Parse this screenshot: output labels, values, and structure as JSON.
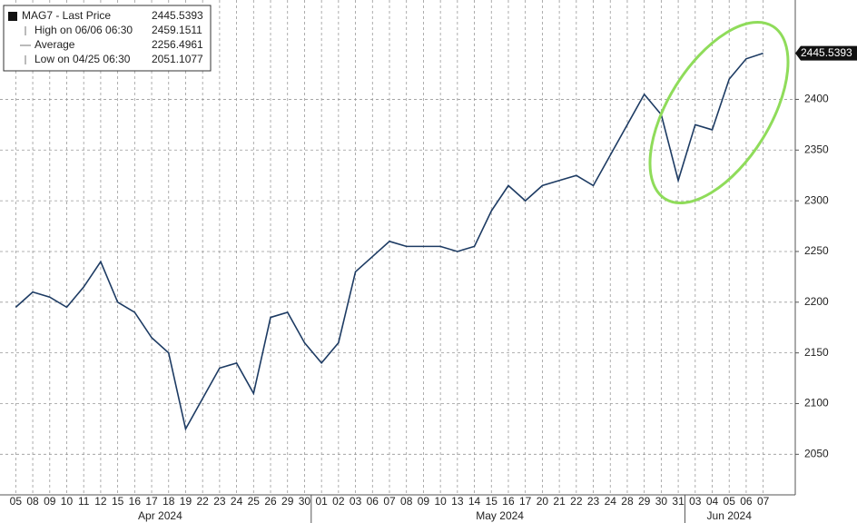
{
  "chart_data": {
    "type": "line",
    "legend": [
      {
        "label": "MAG7 - Last Price",
        "value": 2445.5393
      },
      {
        "label": "High on 06/06 06:30",
        "value": 2459.1511
      },
      {
        "label": "Average",
        "value": 2256.4961
      },
      {
        "label": "Low on 04/25 06:30",
        "value": 2051.1077
      }
    ],
    "categories": [
      "05",
      "08",
      "09",
      "10",
      "11",
      "12",
      "15",
      "16",
      "17",
      "18",
      "19",
      "22",
      "23",
      "24",
      "25",
      "26",
      "29",
      "30",
      "01",
      "02",
      "03",
      "06",
      "07",
      "08",
      "09",
      "10",
      "13",
      "14",
      "15",
      "16",
      "17",
      "20",
      "21",
      "22",
      "23",
      "24",
      "28",
      "29",
      "30",
      "31",
      "03",
      "04",
      "05",
      "06",
      "07"
    ],
    "months": [
      "Apr 2024",
      "May 2024",
      "Jun 2024"
    ],
    "series": [
      {
        "name": "MAG7 - Last Price",
        "color": "#1d3b63",
        "values": [
          2195,
          2210,
          2205,
          2195,
          2215,
          2240,
          2200,
          2190,
          2165,
          2150,
          2075,
          2105,
          2135,
          2140,
          2110,
          2185,
          2190,
          2160,
          2140,
          2160,
          2230,
          2245,
          2260,
          2255,
          2255,
          2255,
          2250,
          2255,
          2290,
          2315,
          2300,
          2315,
          2320,
          2325,
          2315,
          2345,
          2375,
          2405,
          2385,
          2320,
          2375,
          2370,
          2420,
          2440,
          2445.5393
        ]
      }
    ],
    "ylim": [
      2010,
      2498
    ],
    "yticks": [
      2050,
      2100,
      2150,
      2200,
      2250,
      2300,
      2350,
      2400
    ],
    "grid": true
  }
}
